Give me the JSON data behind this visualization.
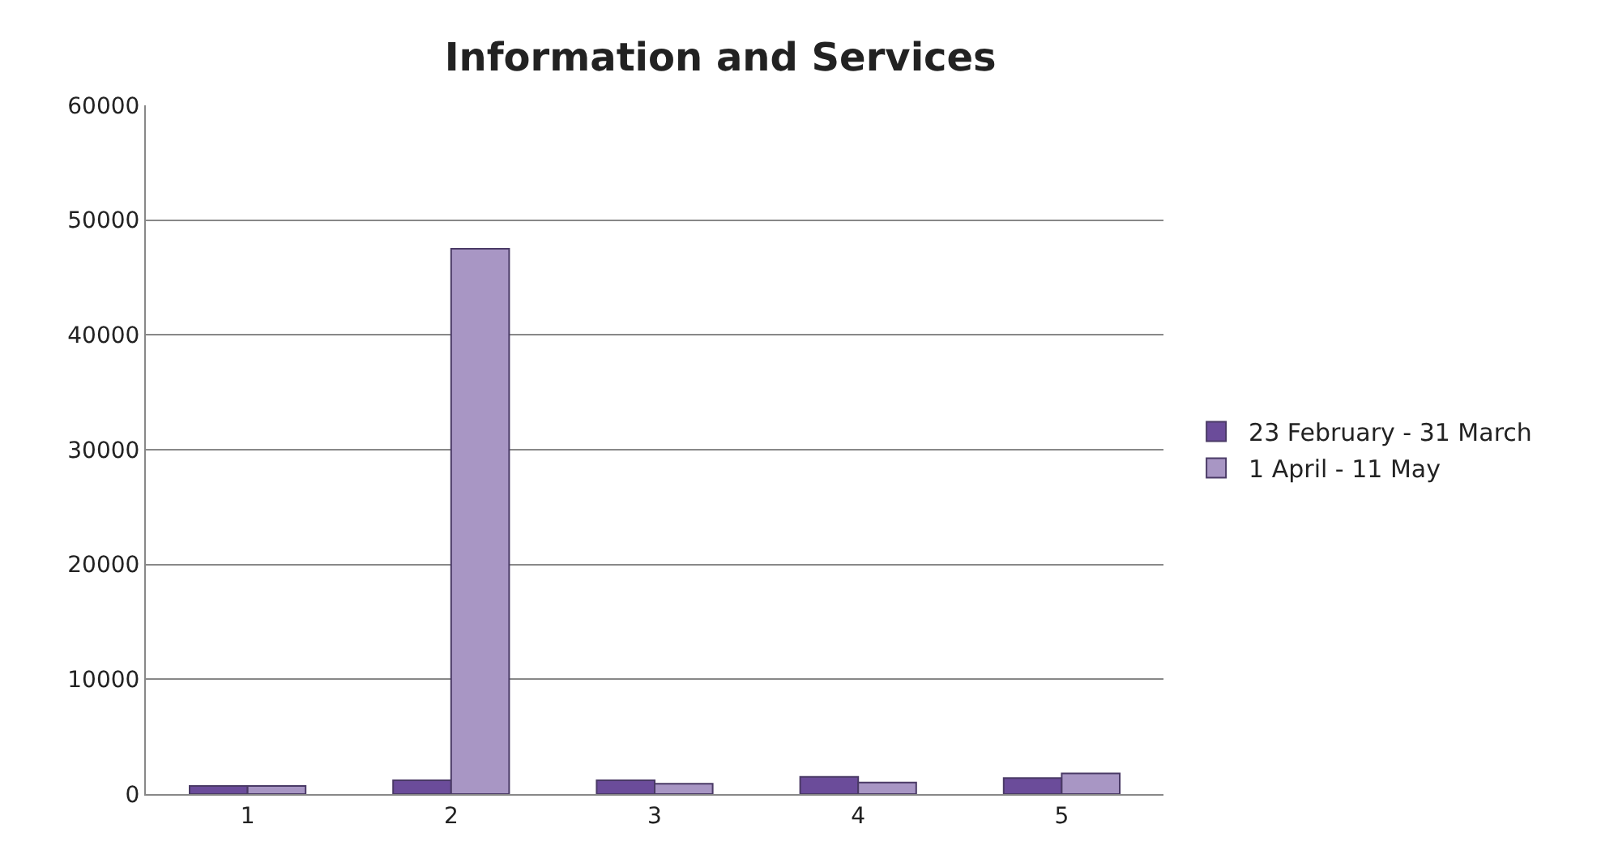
{
  "chart_data": {
    "type": "bar",
    "title": "Information and Services",
    "categories": [
      "1",
      "2",
      "3",
      "4",
      "5"
    ],
    "series": [
      {
        "name": "23 February - 31 March",
        "color": "#6b4c9a",
        "values": [
          700,
          1200,
          1200,
          1500,
          1400
        ]
      },
      {
        "name": "1 April - 11 May",
        "color": "#a896c4",
        "values": [
          700,
          47500,
          900,
          1000,
          1800
        ]
      }
    ],
    "ylim": [
      0,
      60000
    ],
    "yticks": [
      0,
      10000,
      20000,
      30000,
      40000,
      50000,
      60000
    ],
    "grid": "y",
    "legend": "right"
  }
}
